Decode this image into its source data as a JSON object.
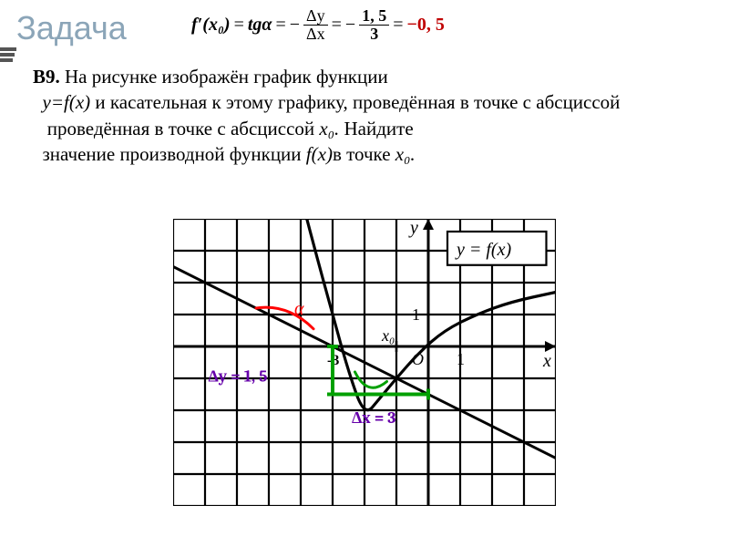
{
  "title": "Задача",
  "formula": {
    "lhs": "f′(x₀)",
    "eq1": "tgα",
    "frac1_num": "Δy",
    "frac1_den": "Δx",
    "frac2_num": "1, 5",
    "frac2_den": "3",
    "result": "−0, 5"
  },
  "problem": {
    "label": "B9.",
    "text_before_italic1": " На рисунке изображён график функции ",
    "yfx": "y=f(x)",
    "text_mid1": " и касательная к этому графику, проведённая в точке с абсциссой ",
    "x0_1": "x₀.",
    "text_mid2": " Найдите значение производной функции ",
    "fx": "f(x)",
    "text_mid3": "в точке ",
    "x0_2": "x₀."
  },
  "graph": {
    "grid": {
      "cell": 35,
      "cols": 12,
      "rows": 9,
      "origin_col": 8,
      "origin_row": 4,
      "stroke": "#000000",
      "stroke_width": 2.2,
      "bg": "#ffffff"
    },
    "axes": {
      "stroke": "#000000",
      "width": 3,
      "x_label": "x",
      "y_label": "y"
    },
    "ticks": {
      "one_x": "1",
      "one_y": "1",
      "minus3": "-3",
      "x0": "x₀"
    },
    "curve": {
      "stroke": "#000000",
      "width": 3.2
    },
    "tangent": {
      "stroke": "#000000",
      "width": 3
    },
    "alpha_arc": {
      "stroke": "#ff0000",
      "width": 3,
      "label": "α",
      "label_color": "#ff0000"
    },
    "green_arc": {
      "stroke": "#00a000",
      "width": 3
    },
    "dy": {
      "label": "Δy = 1, 5",
      "stroke": "#00a000",
      "width": 4,
      "label_color": "#6600aa"
    },
    "dx": {
      "label": "Δx = 3",
      "stroke": "#00a000",
      "width": 4,
      "label_color": "#6600aa"
    },
    "legend_box": {
      "text": "y = f(x)",
      "border": "#000000"
    }
  }
}
